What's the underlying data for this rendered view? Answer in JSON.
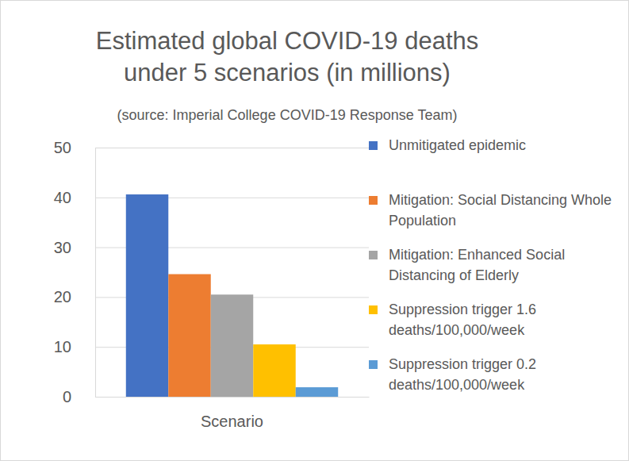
{
  "chart_data": {
    "type": "bar",
    "title": "Estimated global COVID-19 deaths under 5 scenarios (in millions)",
    "subtitle": "(source: Imperial College COVID-19 Response Team)",
    "categories": [
      "Scenario"
    ],
    "series": [
      {
        "name": "Unmitigated epidemic",
        "color": "#4472c4",
        "values": [
          40.6
        ]
      },
      {
        "name": "Mitigation: Social Distancing Whole Population",
        "color": "#ed7d31",
        "values": [
          24.6
        ]
      },
      {
        "name": "Mitigation: Enhanced Social Distancing of Elderly",
        "color": "#a5a5a5",
        "values": [
          20.5
        ]
      },
      {
        "name": "Suppression trigger 1.6 deaths/100,000/week",
        "color": "#ffc000",
        "values": [
          10.5
        ]
      },
      {
        "name": "Suppression trigger 0.2 deaths/100,000/week",
        "color": "#5b9bd5",
        "values": [
          1.9
        ]
      }
    ],
    "ylim": [
      0,
      50
    ],
    "yticks": [
      0,
      10,
      20,
      30,
      40,
      50
    ],
    "grid": true,
    "legend": "right"
  }
}
